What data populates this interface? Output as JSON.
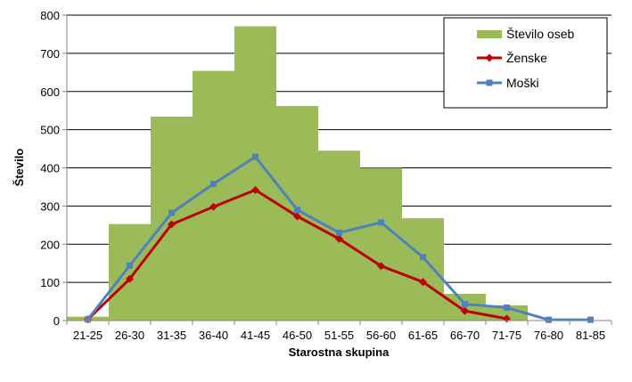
{
  "chart_data": {
    "type": "bar",
    "title": "",
    "xlabel": "Starostna skupina",
    "ylabel": "Število",
    "ylim": [
      0,
      800
    ],
    "yticks": [
      "0",
      "100",
      "200",
      "300",
      "400",
      "500",
      "600",
      "700",
      "800"
    ],
    "grid": true,
    "legend_position": "top-right",
    "categories": [
      "21-25",
      "26-30",
      "31-35",
      "36-40",
      "41-45",
      "46-50",
      "51-55",
      "56-60",
      "61-65",
      "66-70",
      "71-75",
      "76-80",
      "81-85"
    ],
    "series": [
      {
        "name": "Število oseb",
        "kind": "bar",
        "color": "#9bbb59",
        "values": [
          10,
          253,
          534,
          654,
          771,
          562,
          445,
          400,
          268,
          70,
          40,
          0,
          0
        ]
      },
      {
        "name": "Ženske",
        "kind": "line",
        "color": "#c00000",
        "marker": "diamond",
        "values": [
          3,
          109,
          252,
          298,
          342,
          273,
          214,
          143,
          101,
          25,
          5,
          null,
          null
        ]
      },
      {
        "name": "Moški",
        "kind": "line",
        "color": "#4f81bd",
        "marker": "square",
        "values": [
          3,
          144,
          282,
          358,
          429,
          290,
          230,
          257,
          166,
          43,
          34,
          2,
          2
        ]
      }
    ]
  }
}
